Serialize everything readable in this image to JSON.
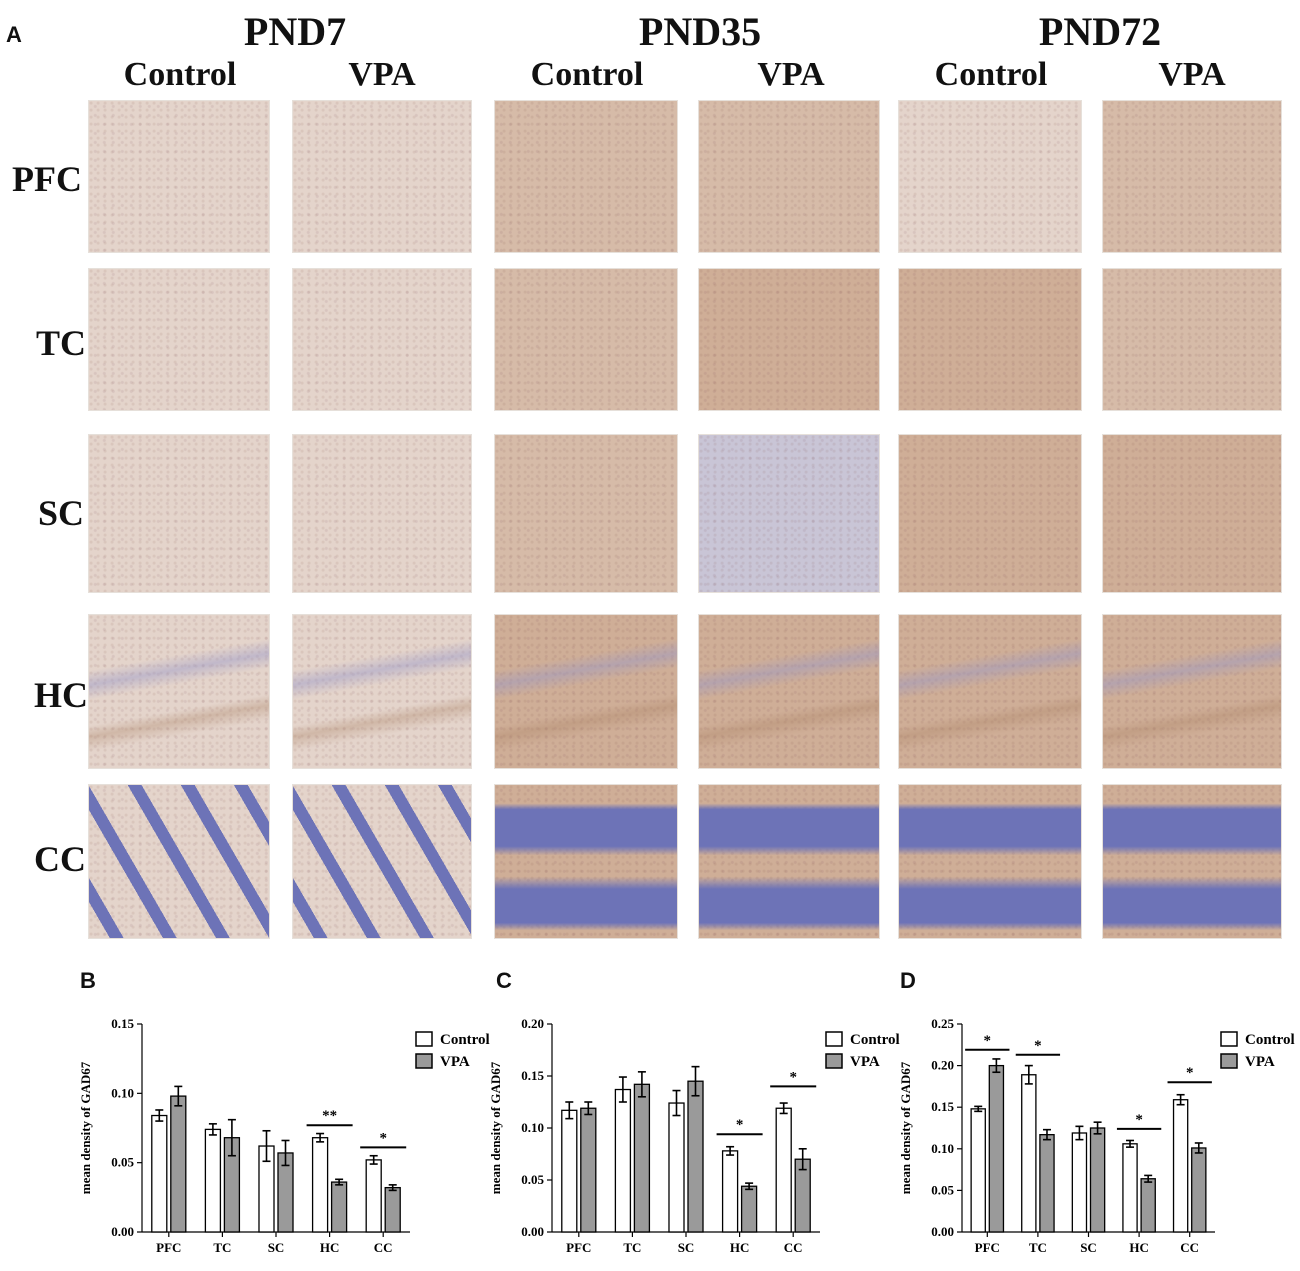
{
  "panel_a": {
    "letter": "A",
    "groups": [
      "PND7",
      "PND35",
      "PND72"
    ],
    "columns": [
      "Control",
      "VPA",
      "Control",
      "VPA",
      "Control",
      "VPA"
    ],
    "rows": [
      "PFC",
      "TC",
      "SC",
      "HC",
      "CC"
    ]
  },
  "palette": {
    "tissue_pale": "#e4d4cb",
    "tissue_mid": "#d6bba8",
    "tissue_warm": "#cfae97",
    "tissue_blue": "#c9c5d6",
    "granular_blue": "#6d73b7",
    "control_fill": "#ffffff",
    "vpa_fill": "#9a9a9a"
  },
  "chart_data": [
    {
      "panel": "B",
      "type": "bar",
      "ylabel": "mean density of GAD67",
      "categories": [
        "PFC",
        "TC",
        "SC",
        "HC",
        "CC"
      ],
      "ylim": [
        0,
        0.15
      ],
      "yticks": [
        "0.00",
        "0.05",
        "0.10",
        "0.15"
      ],
      "ytick_values": [
        0,
        0.05,
        0.1,
        0.15
      ],
      "legend_position": "top-right",
      "series": [
        {
          "name": "Control",
          "values": [
            0.084,
            0.074,
            0.062,
            0.068,
            0.052
          ],
          "errors": [
            0.004,
            0.004,
            0.011,
            0.003,
            0.003
          ]
        },
        {
          "name": "VPA",
          "values": [
            0.098,
            0.068,
            0.057,
            0.036,
            0.032
          ],
          "errors": [
            0.007,
            0.013,
            0.009,
            0.002,
            0.002
          ]
        }
      ],
      "significance": [
        {
          "category": "HC",
          "label": "**",
          "y": 0.077
        },
        {
          "category": "CC",
          "label": "*",
          "y": 0.061
        }
      ]
    },
    {
      "panel": "C",
      "type": "bar",
      "ylabel": "mean density of GAD67",
      "categories": [
        "PFC",
        "TC",
        "SC",
        "HC",
        "CC"
      ],
      "ylim": [
        0,
        0.2
      ],
      "yticks": [
        "0.00",
        "0.05",
        "0.10",
        "0.15",
        "0.20"
      ],
      "ytick_values": [
        0,
        0.05,
        0.1,
        0.15,
        0.2
      ],
      "legend_position": "top-right",
      "series": [
        {
          "name": "Control",
          "values": [
            0.117,
            0.137,
            0.124,
            0.078,
            0.119
          ],
          "errors": [
            0.008,
            0.012,
            0.012,
            0.004,
            0.005
          ]
        },
        {
          "name": "VPA",
          "values": [
            0.119,
            0.142,
            0.145,
            0.044,
            0.07
          ],
          "errors": [
            0.006,
            0.012,
            0.014,
            0.003,
            0.01
          ]
        }
      ],
      "significance": [
        {
          "category": "HC",
          "label": "*",
          "y": 0.094
        },
        {
          "category": "CC",
          "label": "*",
          "y": 0.14
        }
      ]
    },
    {
      "panel": "D",
      "type": "bar",
      "ylabel": "mean density of GAD67",
      "categories": [
        "PFC",
        "TC",
        "SC",
        "HC",
        "CC"
      ],
      "ylim": [
        0,
        0.25
      ],
      "yticks": [
        "0.00",
        "0.05",
        "0.10",
        "0.15",
        "0.20",
        "0.25"
      ],
      "ytick_values": [
        0,
        0.05,
        0.1,
        0.15,
        0.2,
        0.25
      ],
      "legend_position": "top-right",
      "series": [
        {
          "name": "Control",
          "values": [
            0.148,
            0.189,
            0.119,
            0.106,
            0.159
          ],
          "errors": [
            0.003,
            0.011,
            0.008,
            0.004,
            0.006
          ]
        },
        {
          "name": "VPA",
          "values": [
            0.2,
            0.117,
            0.125,
            0.064,
            0.101
          ],
          "errors": [
            0.008,
            0.006,
            0.007,
            0.004,
            0.006
          ]
        }
      ],
      "significance": [
        {
          "category": "PFC",
          "label": "*",
          "y": 0.219
        },
        {
          "category": "TC",
          "label": "*",
          "y": 0.213
        },
        {
          "category": "HC",
          "label": "*",
          "y": 0.124
        },
        {
          "category": "CC",
          "label": "*",
          "y": 0.18
        }
      ]
    }
  ]
}
